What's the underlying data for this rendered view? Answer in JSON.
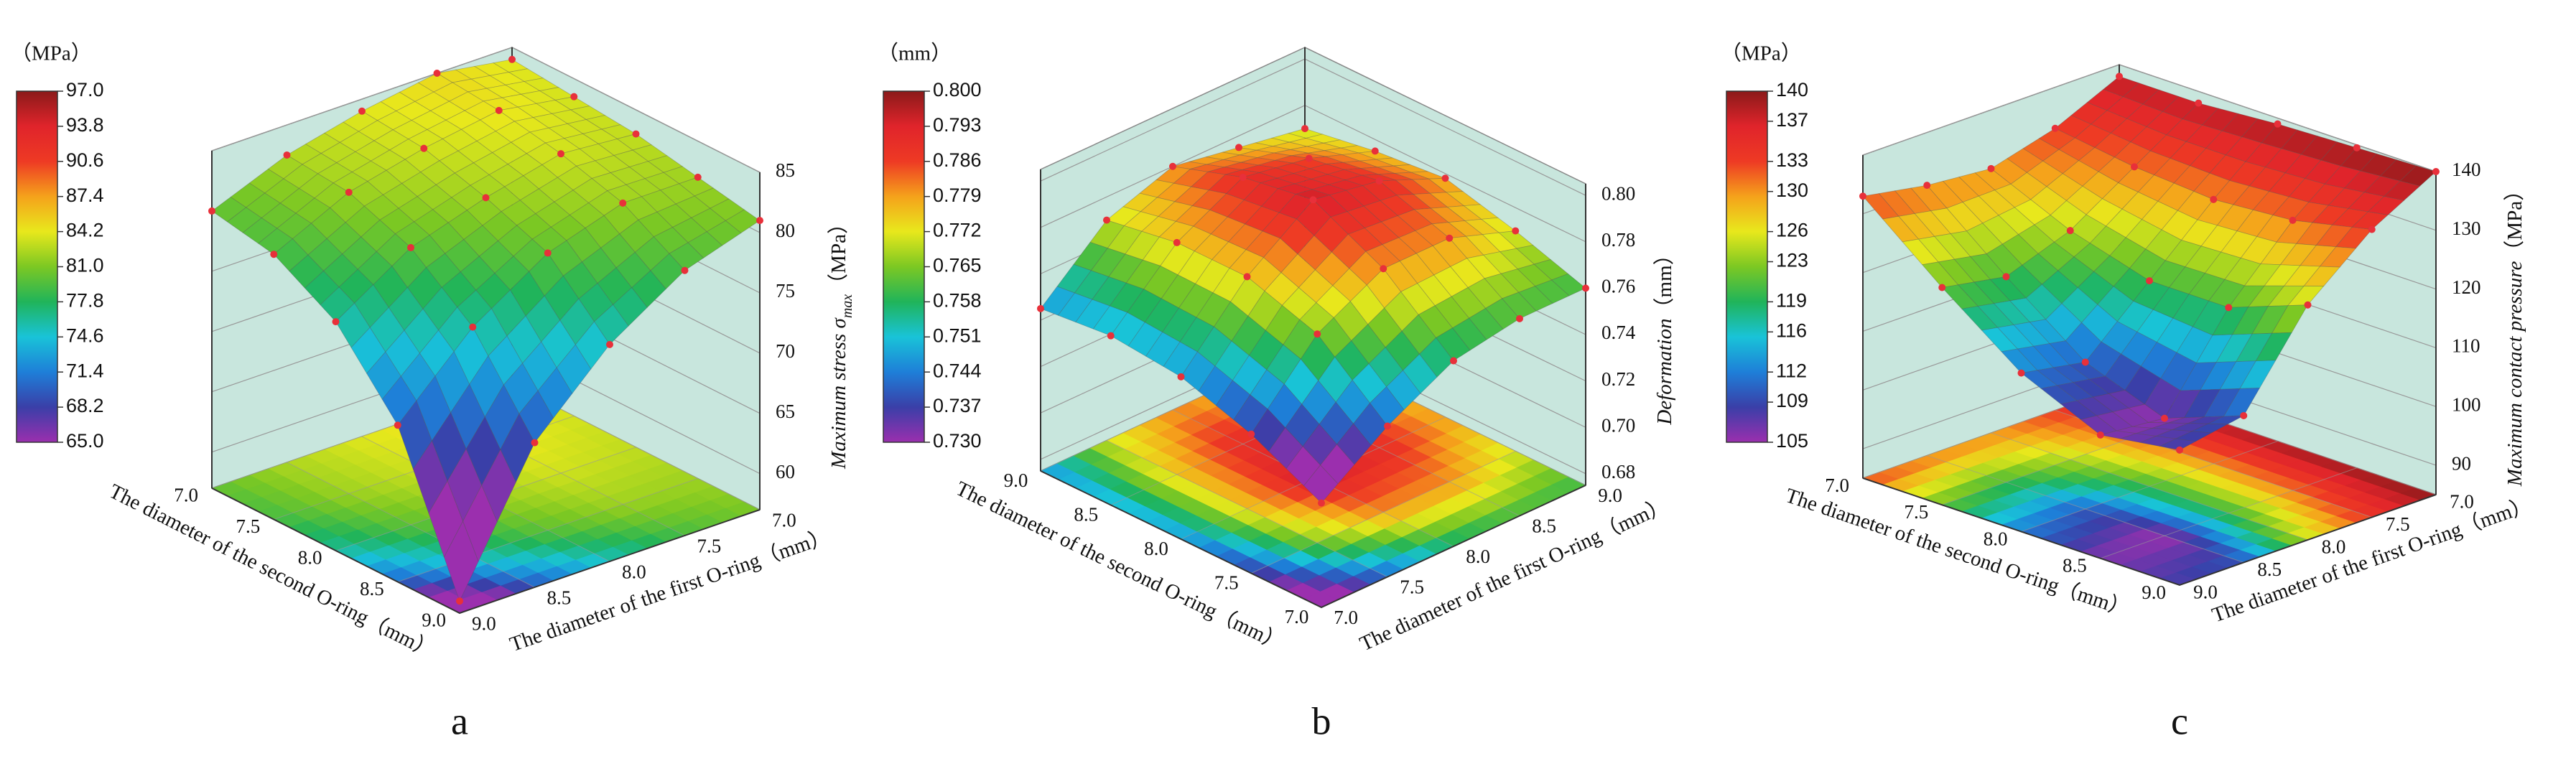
{
  "chart_data": [
    {
      "type": "surface",
      "panel_label": "a",
      "x_label": "The diameter of the first O-ring（mm）",
      "y_label": "The diameter of the second O-ring（mm）",
      "z_label": "Maximum stress σ",
      "z_label_subscript": "max",
      "z_label_unit": "（MPa）",
      "colorbar_label": "（MPa）",
      "x": [
        7,
        7.5,
        8,
        8.5,
        9
      ],
      "y": [
        7,
        7.5,
        8,
        8.5,
        9
      ],
      "z": [
        [
          84,
          83.5,
          83,
          82,
          81
        ],
        [
          85,
          84.5,
          83.5,
          82,
          79
        ],
        [
          84,
          83.5,
          82,
          80,
          75
        ],
        [
          82.5,
          82,
          80,
          76,
          69
        ],
        [
          80,
          79,
          76,
          70,
          58
        ]
      ],
      "xlim": [
        7,
        9
      ],
      "ylim": [
        7,
        9
      ],
      "zlim": [
        57,
        85
      ],
      "xticks": [
        {
          "value": 7,
          "label": "7.0"
        },
        7.5,
        {
          "value": 8,
          "label": "8.0"
        },
        8.5,
        {
          "value": 9,
          "label": "9.0"
        }
      ],
      "yticks": [
        {
          "value": 7,
          "label": "7.0"
        },
        7.5,
        {
          "value": 8,
          "label": "8.0"
        },
        8.5,
        {
          "value": 9,
          "label": "9.0"
        }
      ],
      "zticks": [
        60,
        65,
        70,
        75,
        80,
        85
      ],
      "colorbar_ticks": [
        {
          "value": 97,
          "label": "97.0"
        },
        93.8,
        90.6,
        87.4,
        84.2,
        {
          "value": 81,
          "label": "81.0"
        },
        77.8,
        74.6,
        71.4,
        68.2,
        {
          "value": 65,
          "label": "65.0"
        }
      ],
      "colors": [
        "#9b2fae",
        "#3a3fa8",
        "#1e7fd8",
        "#19c3d8",
        "#20b45a",
        "#7cc823",
        "#e8e81c",
        "#f5a21b",
        "#ee3a24",
        "#e0242b",
        "#8b1a1a"
      ],
      "marker_color": "#e8303a",
      "wall_color": "#c8e6dd"
    },
    {
      "type": "surface",
      "panel_label": "b",
      "x_label": "The diameter of the first O-ring（mm）",
      "y_label": "The diameter of the second O-ring（mm）",
      "z_label": "Deformation",
      "z_label_unit": "（mm）",
      "colorbar_label": "（mm）",
      "x": [
        7,
        7.5,
        8,
        8.5,
        9
      ],
      "y": [
        7,
        7.5,
        8,
        8.5,
        9
      ],
      "z": [
        [
          0.72,
          0.735,
          0.745,
          0.748,
          0.745
        ],
        [
          0.74,
          0.765,
          0.775,
          0.775,
          0.77
        ],
        [
          0.755,
          0.78,
          0.795,
          0.79,
          0.78
        ],
        [
          0.76,
          0.78,
          0.79,
          0.785,
          0.775
        ],
        [
          0.76,
          0.77,
          0.778,
          0.775,
          0.77
        ]
      ],
      "xlim": [
        7,
        9
      ],
      "ylim": [
        7,
        9
      ],
      "zlim": [
        0.675,
        0.805
      ],
      "xticks": [
        {
          "value": 7,
          "label": "7.0"
        },
        7.5,
        {
          "value": 8,
          "label": "8.0"
        },
        8.5,
        {
          "value": 9,
          "label": "9.0"
        }
      ],
      "yticks": [
        {
          "value": 7,
          "label": "7.0"
        },
        7.5,
        {
          "value": 8,
          "label": "8.0"
        },
        8.5,
        {
          "value": 9,
          "label": "9.0"
        }
      ],
      "zticks": [
        0.68,
        {
          "value": 0.7,
          "label": "0.70"
        },
        0.72,
        0.74,
        0.76,
        0.78,
        {
          "value": 0.8,
          "label": "0.80"
        }
      ],
      "colorbar_ticks": [
        {
          "value": 0.8,
          "label": "0.800"
        },
        0.793,
        0.786,
        0.779,
        0.772,
        0.765,
        0.758,
        0.751,
        0.744,
        0.737,
        {
          "value": 0.73,
          "label": "0.730"
        }
      ],
      "colors": [
        "#9b2fae",
        "#3a3fa8",
        "#1e7fd8",
        "#19c3d8",
        "#20b45a",
        "#7cc823",
        "#e8e81c",
        "#f5a21b",
        "#ee3a24",
        "#e0242b",
        "#8b1a1a"
      ],
      "marker_color": "#e8303a",
      "wall_color": "#c8e6dd"
    },
    {
      "type": "surface",
      "panel_label": "c",
      "x_label": "The diameter of the first O-ring（mm）",
      "y_label": "The diameter of the second O-ring（mm）",
      "z_label": "Maximum contact pressure",
      "z_label_unit": "（MPa）",
      "colorbar_label": "（MPa）",
      "x": [
        7,
        7.5,
        8,
        8.5,
        9
      ],
      "y": [
        7,
        7.5,
        8,
        8.5,
        9
      ],
      "z": [
        [
          138,
          138,
          139,
          139.5,
          140
        ],
        [
          133,
          131,
          130,
          131,
          134
        ],
        [
          130,
          124,
          120,
          120,
          125
        ],
        [
          131,
          120,
          110,
          105,
          110
        ],
        [
          133,
          122,
          112,
          106,
          108
        ]
      ],
      "xlim": [
        7,
        9
      ],
      "ylim": [
        7,
        9
      ],
      "zlim": [
        85,
        140
      ],
      "xticks": [
        {
          "value": 7,
          "label": "7.0"
        },
        7.5,
        {
          "value": 8,
          "label": "8.0"
        },
        8.5,
        {
          "value": 9,
          "label": "9.0"
        }
      ],
      "yticks": [
        {
          "value": 7,
          "label": "7.0"
        },
        7.5,
        {
          "value": 8,
          "label": "8.0"
        },
        8.5,
        {
          "value": 9,
          "label": "9.0"
        }
      ],
      "zticks": [
        90,
        100,
        110,
        120,
        130,
        140
      ],
      "colorbar_ticks": [
        140,
        137,
        133,
        130,
        126,
        123,
        119,
        116,
        112,
        109,
        105
      ],
      "colors": [
        "#9b2fae",
        "#3a3fa8",
        "#1e7fd8",
        "#19c3d8",
        "#20b45a",
        "#7cc823",
        "#e8e81c",
        "#f5a21b",
        "#ee3a24",
        "#e0242b",
        "#8b1a1a"
      ],
      "marker_color": "#e8303a",
      "wall_color": "#c8e6dd"
    }
  ]
}
